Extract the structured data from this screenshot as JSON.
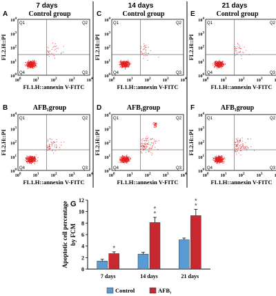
{
  "columns": [
    "7 days",
    "14 days",
    "21 days"
  ],
  "quadrant_labels": [
    "Q1",
    "Q2",
    "Q3",
    "Q4"
  ],
  "tick_exponents": [
    "0",
    "1",
    "2",
    "3",
    "4"
  ],
  "tick_base": "10",
  "dot_color": "#e02020",
  "panels": [
    {
      "letter": "A",
      "title": "Control group",
      "xlabel": "FL1.H::annexin V-FITC",
      "ylabel": "FL2.H::PI",
      "col": 0,
      "row": 0
    },
    {
      "letter": "C",
      "title": "Control group",
      "xlabel": "FL1.H::annexin V-FITC",
      "ylabel": "FL2.H::PI",
      "col": 1,
      "row": 0
    },
    {
      "letter": "E",
      "title": "Control group",
      "xlabel": "FL1.H::annexin V-FITC",
      "ylabel": "FL2.H::PI",
      "col": 2,
      "row": 0
    },
    {
      "letter": "B",
      "title": "AFB₁group",
      "xlabel": "FL1.H::annexin V-FITC",
      "ylabel": "FL2.H::PI",
      "col": 0,
      "row": 1
    },
    {
      "letter": "D",
      "title": "AFB₁group",
      "xlabel": "FL1.H::annexin V-FITC",
      "ylabel": "FL2.H::PI",
      "col": 1,
      "row": 1
    },
    {
      "letter": "F",
      "title": "AFB₁group",
      "xlabel": "FL1.H::annexin V-FITC",
      "ylabel": "FL2.H::PI",
      "col": 2,
      "row": 1
    }
  ],
  "chart_data": {
    "type": "bar",
    "letter": "G",
    "categories": [
      "7 days",
      "14 days",
      "21 days"
    ],
    "series": [
      {
        "name": "Control",
        "color": "#5b9bd5",
        "values": [
          1.4,
          2.6,
          5.1
        ],
        "errors": [
          0.3,
          0.3,
          0.3
        ]
      },
      {
        "name": "AFB₁",
        "color": "#c8282f",
        "values": [
          2.7,
          8.1,
          9.3
        ],
        "errors": [
          0.3,
          0.9,
          1.1
        ]
      }
    ],
    "significance": [
      [
        "",
        "*"
      ],
      [
        "",
        "**"
      ],
      [
        "",
        "**"
      ]
    ],
    "ylabel": "Apoptotic cell percentage by FCM",
    "ylim": [
      0,
      12
    ],
    "yticks": [
      "0",
      "2",
      "4",
      "6",
      "8",
      "10",
      "12"
    ],
    "legend_position": "bottom"
  }
}
